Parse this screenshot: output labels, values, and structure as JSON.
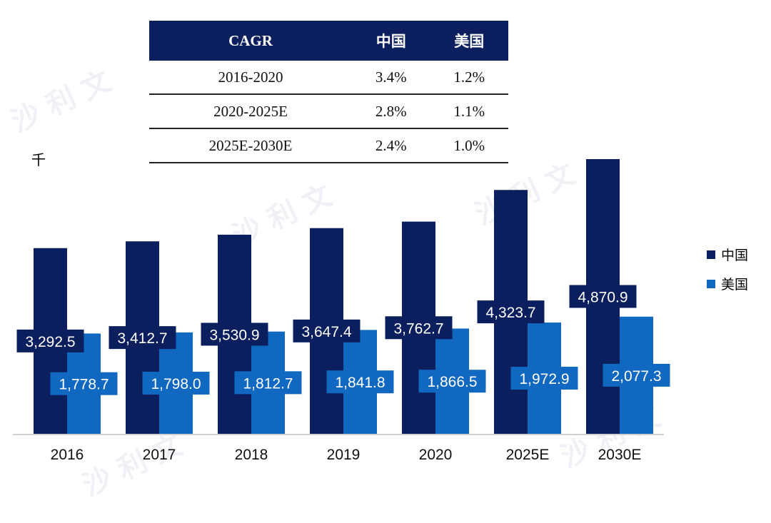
{
  "cagr_table": {
    "headers": [
      "CAGR",
      "中国",
      "美国"
    ],
    "rows": [
      [
        "2016-2020",
        "3.4%",
        "1.2%"
      ],
      [
        "2020-2025E",
        "2.8%",
        "1.1%"
      ],
      [
        "2025E-2030E",
        "2.4%",
        "1.0%"
      ]
    ]
  },
  "chart_data": {
    "type": "bar",
    "unit_label": "千",
    "categories": [
      "2016",
      "2017",
      "2018",
      "2019",
      "2020",
      "2025E",
      "2030E"
    ],
    "series": [
      {
        "name": "中国",
        "color": "#0b1f5e",
        "values": [
          3292.5,
          3412.7,
          3530.9,
          3647.4,
          3762.7,
          4323.7,
          4870.9
        ],
        "labels": [
          "3,292.5",
          "3,412.7",
          "3,530.9",
          "3,647.4",
          "3,762.7",
          "4,323.7",
          "4,870.9"
        ]
      },
      {
        "name": "美国",
        "color": "#1168c0",
        "values": [
          1778.7,
          1798.0,
          1812.7,
          1841.8,
          1866.5,
          1972.9,
          2077.3
        ],
        "labels": [
          "1,778.7",
          "1,798.0",
          "1,812.7",
          "1,841.8",
          "1,866.5",
          "1,972.9",
          "2,077.3"
        ]
      }
    ],
    "ylim": [
      0,
      4870.9
    ],
    "legend": "right",
    "grid": false
  }
}
